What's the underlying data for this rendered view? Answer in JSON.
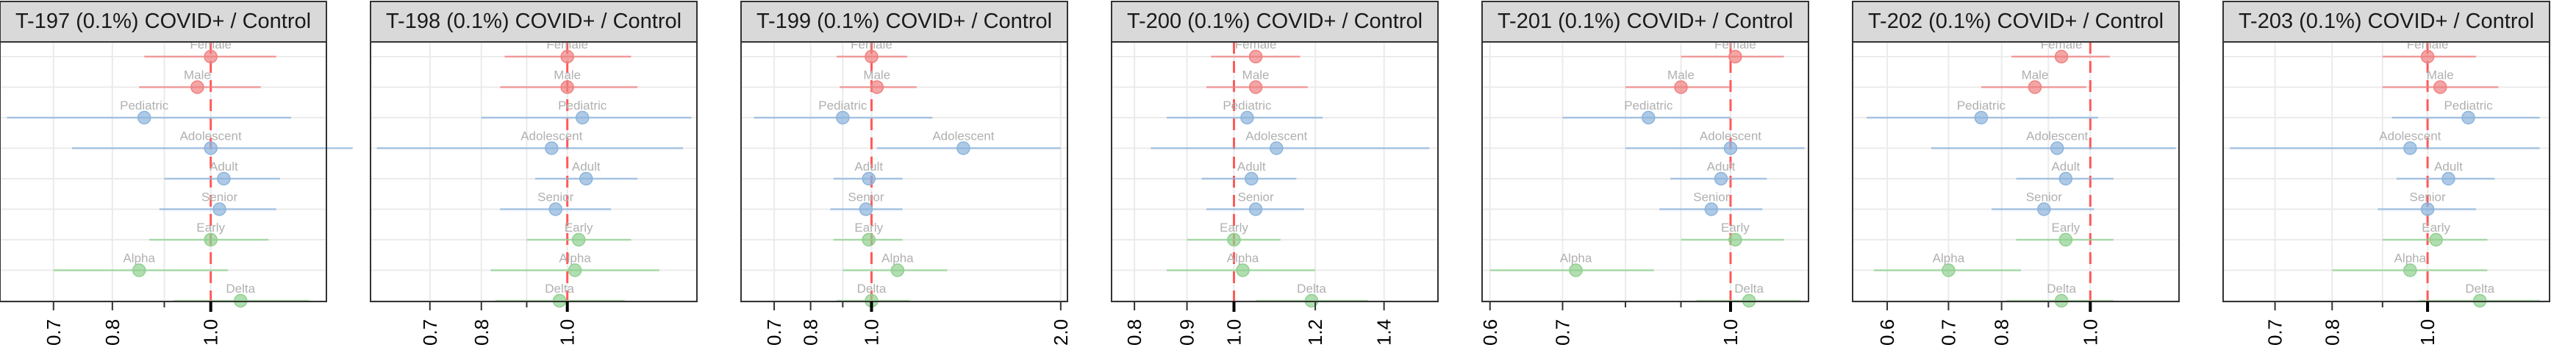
{
  "colors": {
    "sex": "#f08080",
    "age": "#8cb4dc",
    "variant": "#90d090",
    "refline": "#ff5a5a",
    "strip_fill": "#d9d9d9",
    "grid": "#ebebeb",
    "panel_border": "#333333",
    "label_text": "#b0b0b0",
    "axis_text": "#000000"
  },
  "chart_data": [
    {
      "type": "forest",
      "title": "T-197 (0.1%) COVID+ / Control",
      "scale": "log",
      "xlim": [
        0.62,
        1.3
      ],
      "ticks": [
        "0.7",
        "0.8",
        "1.0"
      ],
      "tick_values": [
        0.7,
        0.8,
        1.0
      ],
      "minor_ticks": [
        0.9
      ],
      "refline": 1.0,
      "points": [
        {
          "label": "Female",
          "group": "sex",
          "est": 1.0,
          "lo": 0.86,
          "hi": 1.16
        },
        {
          "label": "Male",
          "group": "sex",
          "est": 0.97,
          "lo": 0.85,
          "hi": 1.12
        },
        {
          "label": "Pediatric",
          "group": "age",
          "est": 0.86,
          "lo": 0.63,
          "hi": 1.2
        },
        {
          "label": "Adolescent",
          "group": "age",
          "est": 1.0,
          "lo": 0.73,
          "hi": 1.38
        },
        {
          "label": "Adult",
          "group": "age",
          "est": 1.03,
          "lo": 0.9,
          "hi": 1.17
        },
        {
          "label": "Senior",
          "group": "age",
          "est": 1.02,
          "lo": 0.89,
          "hi": 1.16
        },
        {
          "label": "Early",
          "group": "variant",
          "est": 1.0,
          "lo": 0.87,
          "hi": 1.14
        },
        {
          "label": "Alpha",
          "group": "variant",
          "est": 0.85,
          "lo": 0.7,
          "hi": 1.04
        },
        {
          "label": "Delta",
          "group": "variant",
          "est": 1.07,
          "lo": 0.92,
          "hi": 1.25
        }
      ]
    },
    {
      "type": "forest",
      "title": "T-198 (0.1%) COVID+ / Control",
      "scale": "log",
      "xlim": [
        0.6,
        1.4
      ],
      "ticks": [
        "0.7",
        "0.8",
        "1.0"
      ],
      "tick_values": [
        0.7,
        0.8,
        1.0
      ],
      "minor_ticks": [
        0.9
      ],
      "refline": 1.0,
      "points": [
        {
          "label": "Female",
          "group": "sex",
          "est": 1.0,
          "lo": 0.85,
          "hi": 1.18
        },
        {
          "label": "Male",
          "group": "sex",
          "est": 1.0,
          "lo": 0.84,
          "hi": 1.2
        },
        {
          "label": "Pediatric",
          "group": "age",
          "est": 1.04,
          "lo": 0.8,
          "hi": 1.38
        },
        {
          "label": "Adolescent",
          "group": "age",
          "est": 0.96,
          "lo": 0.61,
          "hi": 1.35
        },
        {
          "label": "Adult",
          "group": "age",
          "est": 1.05,
          "lo": 0.92,
          "hi": 1.2
        },
        {
          "label": "Senior",
          "group": "age",
          "est": 0.97,
          "lo": 0.84,
          "hi": 1.12
        },
        {
          "label": "Early",
          "group": "variant",
          "est": 1.03,
          "lo": 0.9,
          "hi": 1.18
        },
        {
          "label": "Alpha",
          "group": "variant",
          "est": 1.02,
          "lo": 0.82,
          "hi": 1.27
        },
        {
          "label": "Delta",
          "group": "variant",
          "est": 0.98,
          "lo": 0.83,
          "hi": 1.16
        }
      ]
    },
    {
      "type": "forest",
      "title": "T-199 (0.1%) COVID+ / Control",
      "scale": "log",
      "xlim": [
        0.62,
        2.05
      ],
      "ticks": [
        "0.7",
        "0.8",
        "1.0",
        "2.0"
      ],
      "tick_values": [
        0.7,
        0.8,
        1.0,
        2.0
      ],
      "minor_ticks": [
        0.9
      ],
      "refline": 1.0,
      "points": [
        {
          "label": "Female",
          "group": "sex",
          "est": 1.0,
          "lo": 0.88,
          "hi": 1.14
        },
        {
          "label": "Male",
          "group": "sex",
          "est": 1.02,
          "lo": 0.89,
          "hi": 1.18
        },
        {
          "label": "Pediatric",
          "group": "age",
          "est": 0.9,
          "lo": 0.65,
          "hi": 1.25
        },
        {
          "label": "Adolescent",
          "group": "age",
          "est": 1.4,
          "lo": 1.02,
          "hi": 2.0
        },
        {
          "label": "Adult",
          "group": "age",
          "est": 0.99,
          "lo": 0.87,
          "hi": 1.12
        },
        {
          "label": "Senior",
          "group": "age",
          "est": 0.98,
          "lo": 0.86,
          "hi": 1.12
        },
        {
          "label": "Early",
          "group": "variant",
          "est": 0.99,
          "lo": 0.87,
          "hi": 1.12
        },
        {
          "label": "Alpha",
          "group": "variant",
          "est": 1.1,
          "lo": 0.9,
          "hi": 1.32
        },
        {
          "label": "Delta",
          "group": "variant",
          "est": 1.0,
          "lo": 0.88,
          "hi": 1.15
        }
      ]
    },
    {
      "type": "forest",
      "title": "T-200 (0.1%) COVID+ / Control",
      "scale": "log",
      "xlim": [
        0.76,
        1.58
      ],
      "ticks": [
        "0.8",
        "0.9",
        "1.0",
        "1.2",
        "1.4"
      ],
      "tick_values": [
        0.8,
        0.9,
        1.0,
        1.2,
        1.4
      ],
      "minor_ticks": [],
      "refline": 1.0,
      "points": [
        {
          "label": "Female",
          "group": "sex",
          "est": 1.05,
          "lo": 0.95,
          "hi": 1.16
        },
        {
          "label": "Male",
          "group": "sex",
          "est": 1.05,
          "lo": 0.94,
          "hi": 1.18
        },
        {
          "label": "Pediatric",
          "group": "age",
          "est": 1.03,
          "lo": 0.86,
          "hi": 1.22
        },
        {
          "label": "Adolescent",
          "group": "age",
          "est": 1.1,
          "lo": 0.83,
          "hi": 1.55
        },
        {
          "label": "Adult",
          "group": "age",
          "est": 1.04,
          "lo": 0.93,
          "hi": 1.15
        },
        {
          "label": "Senior",
          "group": "age",
          "est": 1.05,
          "lo": 0.94,
          "hi": 1.17
        },
        {
          "label": "Early",
          "group": "variant",
          "est": 1.0,
          "lo": 0.9,
          "hi": 1.11
        },
        {
          "label": "Alpha",
          "group": "variant",
          "est": 1.02,
          "lo": 0.86,
          "hi": 1.2
        },
        {
          "label": "Delta",
          "group": "variant",
          "est": 1.19,
          "lo": 1.05,
          "hi": 1.35
        }
      ]
    },
    {
      "type": "forest",
      "title": "T-201 (0.1%) COVID+ / Control",
      "scale": "log",
      "xlim": [
        0.59,
        1.18
      ],
      "ticks": [
        "0.6",
        "0.7",
        "1.0"
      ],
      "tick_values": [
        0.6,
        0.7,
        1.0
      ],
      "minor_ticks": [
        0.8,
        0.9
      ],
      "refline": 1.0,
      "points": [
        {
          "label": "Female",
          "group": "sex",
          "est": 1.01,
          "lo": 0.9,
          "hi": 1.12
        },
        {
          "label": "Male",
          "group": "sex",
          "est": 0.9,
          "lo": 0.8,
          "hi": 1.0
        },
        {
          "label": "Pediatric",
          "group": "age",
          "est": 0.84,
          "lo": 0.7,
          "hi": 1.0
        },
        {
          "label": "Adolescent",
          "group": "age",
          "est": 1.0,
          "lo": 0.8,
          "hi": 1.17
        },
        {
          "label": "Adult",
          "group": "age",
          "est": 0.98,
          "lo": 0.88,
          "hi": 1.08
        },
        {
          "label": "Senior",
          "group": "age",
          "est": 0.96,
          "lo": 0.86,
          "hi": 1.07
        },
        {
          "label": "Early",
          "group": "variant",
          "est": 1.01,
          "lo": 0.9,
          "hi": 1.12
        },
        {
          "label": "Alpha",
          "group": "variant",
          "est": 0.72,
          "lo": 0.6,
          "hi": 0.85
        },
        {
          "label": "Delta",
          "group": "variant",
          "est": 1.04,
          "lo": 0.93,
          "hi": 1.16
        }
      ]
    },
    {
      "type": "forest",
      "title": "T-202 (0.1%) COVID+ / Control",
      "scale": "log",
      "xlim": [
        0.55,
        1.25
      ],
      "ticks": [
        "0.6",
        "0.7",
        "0.8",
        "1.0"
      ],
      "tick_values": [
        0.6,
        0.7,
        0.8,
        1.0
      ],
      "minor_ticks": [
        0.9
      ],
      "refline": 1.0,
      "points": [
        {
          "label": "Female",
          "group": "sex",
          "est": 0.93,
          "lo": 0.82,
          "hi": 1.05
        },
        {
          "label": "Male",
          "group": "sex",
          "est": 0.87,
          "lo": 0.76,
          "hi": 0.99
        },
        {
          "label": "Pediatric",
          "group": "age",
          "est": 0.76,
          "lo": 0.57,
          "hi": 1.02
        },
        {
          "label": "Adolescent",
          "group": "age",
          "est": 0.92,
          "lo": 0.67,
          "hi": 1.24
        },
        {
          "label": "Adult",
          "group": "age",
          "est": 0.94,
          "lo": 0.83,
          "hi": 1.06
        },
        {
          "label": "Senior",
          "group": "age",
          "est": 0.89,
          "lo": 0.78,
          "hi": 1.01
        },
        {
          "label": "Early",
          "group": "variant",
          "est": 0.94,
          "lo": 0.83,
          "hi": 1.06
        },
        {
          "label": "Alpha",
          "group": "variant",
          "est": 0.7,
          "lo": 0.58,
          "hi": 0.84
        },
        {
          "label": "Delta",
          "group": "variant",
          "est": 0.93,
          "lo": 0.81,
          "hi": 1.06
        }
      ]
    },
    {
      "type": "forest",
      "title": "T-203 (0.1%) COVID+ / Control",
      "scale": "log",
      "xlim": [
        0.62,
        1.33
      ],
      "ticks": [
        "0.7",
        "0.8",
        "1.0"
      ],
      "tick_values": [
        0.7,
        0.8,
        1.0
      ],
      "minor_ticks": [
        0.9
      ],
      "refline": 1.0,
      "points": [
        {
          "label": "Female",
          "group": "sex",
          "est": 1.0,
          "lo": 0.9,
          "hi": 1.12
        },
        {
          "label": "Male",
          "group": "sex",
          "est": 1.03,
          "lo": 0.9,
          "hi": 1.18
        },
        {
          "label": "Pediatric",
          "group": "age",
          "est": 1.1,
          "lo": 0.92,
          "hi": 1.3
        },
        {
          "label": "Adolescent",
          "group": "age",
          "est": 0.96,
          "lo": 0.63,
          "hi": 1.3
        },
        {
          "label": "Adult",
          "group": "age",
          "est": 1.05,
          "lo": 0.93,
          "hi": 1.17
        },
        {
          "label": "Senior",
          "group": "age",
          "est": 1.0,
          "lo": 0.89,
          "hi": 1.12
        },
        {
          "label": "Early",
          "group": "variant",
          "est": 1.02,
          "lo": 0.9,
          "hi": 1.15
        },
        {
          "label": "Alpha",
          "group": "variant",
          "est": 0.96,
          "lo": 0.8,
          "hi": 1.15
        },
        {
          "label": "Delta",
          "group": "variant",
          "est": 1.13,
          "lo": 0.98,
          "hi": 1.3
        }
      ]
    }
  ]
}
